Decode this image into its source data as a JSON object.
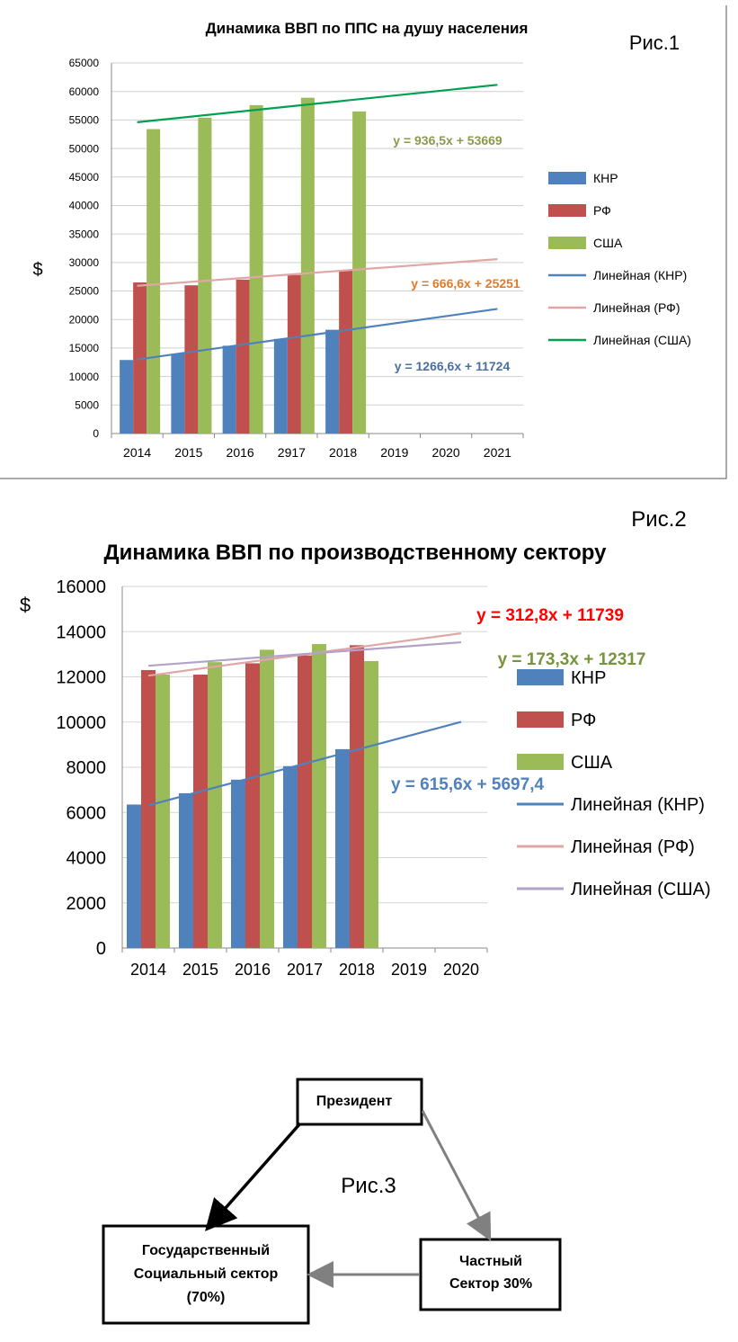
{
  "chart_data": [
    {
      "type": "bar",
      "fig_label": "Рис.1",
      "title": "Динамика ВВП по ППС на душу населения",
      "ylabel": "$",
      "ylim": [
        0,
        65000
      ],
      "yticks": [
        0,
        5000,
        10000,
        15000,
        20000,
        25000,
        30000,
        35000,
        40000,
        45000,
        50000,
        55000,
        60000,
        65000
      ],
      "categories": [
        "2014",
        "2015",
        "2016",
        "2917",
        "2018",
        "2019",
        "2020",
        "2021"
      ],
      "series": [
        {
          "name": "КНР",
          "color": "#4f81bd",
          "values": [
            12900,
            14000,
            15400,
            16600,
            18200,
            null,
            null,
            null
          ]
        },
        {
          "name": "РФ",
          "color": "#c0504d",
          "values": [
            26500,
            26000,
            27000,
            27800,
            28700,
            null,
            null,
            null
          ]
        },
        {
          "name": "США",
          "color": "#9bbb59",
          "values": [
            53400,
            55400,
            57600,
            58900,
            56500,
            null,
            null,
            null
          ]
        }
      ],
      "trendlines": [
        {
          "name": "Линейная (КНР)",
          "color": "#4f81bd",
          "equation": "y = 1266,6x + 11724",
          "slope": 1266.6,
          "intercept": 11724,
          "eq_color": "#4a6fa0"
        },
        {
          "name": "Линейная (РФ)",
          "color": "#e0a6a6",
          "equation": "y = 666,6x + 25251",
          "slope": 666.6,
          "intercept": 25251,
          "eq_color": "#e07b2a"
        },
        {
          "name": "Линейная (США)",
          "color": "#00a050",
          "equation": "y = 936,5x + 53669",
          "slope": 936.5,
          "intercept": 53669,
          "eq_color": "#8a9a4a"
        }
      ],
      "grid": true,
      "legend": "right"
    },
    {
      "type": "bar",
      "fig_label": "Рис.2",
      "title": "Динамика ВВП по производственному сектору",
      "ylabel": "$",
      "ylim": [
        0,
        16000
      ],
      "yticks": [
        0,
        2000,
        4000,
        6000,
        8000,
        10000,
        12000,
        14000,
        16000
      ],
      "categories": [
        "2014",
        "2015",
        "2016",
        "2017",
        "2018",
        "2019",
        "2020"
      ],
      "series": [
        {
          "name": "КНР",
          "color": "#4f81bd",
          "values": [
            6350,
            6850,
            7450,
            8050,
            8800,
            null,
            null
          ]
        },
        {
          "name": "РФ",
          "color": "#c0504d",
          "values": [
            12300,
            12100,
            12600,
            12950,
            13400,
            null,
            null
          ]
        },
        {
          "name": "США",
          "color": "#9bbb59",
          "values": [
            12100,
            12650,
            13200,
            13450,
            12700,
            null,
            null
          ]
        }
      ],
      "trendlines": [
        {
          "name": "Линейная (КНР)",
          "color": "#4f81bd",
          "equation": "y = 615,6x + 5697,4",
          "slope": 615.6,
          "intercept": 5697.4,
          "eq_color": "#4f81bd"
        },
        {
          "name": "Линейная (РФ)",
          "color": "#e0a6a6",
          "equation": "y = 312,8x + 11739",
          "slope": 312.8,
          "intercept": 11739,
          "eq_color": "#ff0000"
        },
        {
          "name": "Линейная (США)",
          "color": "#b3a2c7",
          "equation": "y = 173,3x + 12317",
          "slope": 173.3,
          "intercept": 12317,
          "eq_color": "#77933c"
        }
      ],
      "grid": true,
      "legend": "right"
    }
  ],
  "diagram": {
    "fig_label": "Рис.3",
    "nodes": {
      "president": "Президент",
      "state_lines": [
        "Государственный",
        "Социальный сектор",
        "(70%)"
      ],
      "private_lines": [
        "Частный",
        "Сектор 30%"
      ]
    }
  }
}
